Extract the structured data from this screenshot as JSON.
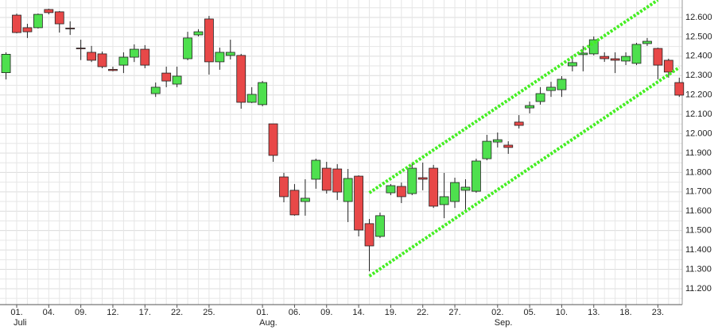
{
  "chart_data": {
    "type": "candlestick",
    "categories": [
      null,
      "01.",
      null,
      null,
      "04.",
      null,
      null,
      "09.",
      null,
      null,
      "12.",
      null,
      null,
      "17.",
      null,
      null,
      "22.",
      null,
      null,
      "25.",
      null,
      null,
      null,
      null,
      "01.",
      null,
      null,
      "06.",
      null,
      null,
      "09.",
      null,
      null,
      "14.",
      null,
      null,
      "19.",
      null,
      null,
      "22.",
      null,
      null,
      "27.",
      null,
      null,
      null,
      "02.",
      null,
      null,
      "05.",
      null,
      null,
      "10.",
      null,
      null,
      "13.",
      null,
      null,
      "18.",
      null,
      null,
      "23.",
      null,
      null
    ],
    "months": [
      null,
      "Juli",
      null,
      null,
      null,
      null,
      null,
      null,
      null,
      null,
      null,
      null,
      null,
      null,
      null,
      null,
      null,
      null,
      null,
      null,
      null,
      null,
      null,
      null,
      "Aug.",
      null,
      null,
      null,
      null,
      null,
      null,
      null,
      null,
      null,
      null,
      null,
      null,
      null,
      null,
      null,
      null,
      null,
      null,
      null,
      null,
      null,
      "Sep.",
      null,
      null,
      null,
      null,
      null,
      null,
      null,
      null,
      null,
      null,
      null,
      null,
      null,
      null,
      null,
      null,
      null
    ],
    "open": [
      12315,
      12612,
      12547,
      12547,
      12641,
      12629,
      12545,
      12442,
      12420,
      12412,
      12332,
      12354,
      12395,
      12436,
      12207,
      12313,
      12256,
      12387,
      12510,
      12592,
      12371,
      12404,
      12404,
      12162,
      12150,
      12051,
      11777,
      11708,
      11650,
      11765,
      11822,
      11818,
      11650,
      11781,
      11536,
      11470,
      11695,
      11728,
      11691,
      11773,
      11822,
      11634,
      11650,
      11708,
      11703,
      11871,
      11957,
      11941,
      12060,
      12133,
      12166,
      12223,
      12227,
      12350,
      12408,
      12412,
      12399,
      12387,
      12375,
      12363,
      12465,
      12440,
      12379,
      12264
    ],
    "high": [
      12420,
      12620,
      12567,
      12620,
      12645,
      12633,
      12580,
      12485,
      12453,
      12424,
      12346,
      12420,
      12461,
      12457,
      12264,
      12346,
      12346,
      12526,
      12539,
      12608,
      12444,
      12485,
      12412,
      12240,
      12272,
      12051,
      11798,
      11740,
      11765,
      11871,
      11855,
      11843,
      11818,
      11785,
      11560,
      11593,
      11740,
      11748,
      11851,
      11851,
      11839,
      11798,
      11773,
      11765,
      11871,
      11994,
      12006,
      11961,
      12096,
      12166,
      12240,
      12268,
      12297,
      12404,
      12453,
      12502,
      12420,
      12420,
      12420,
      12469,
      12494,
      12444,
      12387,
      12289
    ],
    "low": [
      12280,
      12518,
      12494,
      12543,
      12616,
      12522,
      12510,
      12380,
      12370,
      12338,
      12322,
      12313,
      12370,
      12338,
      12190,
      12240,
      12240,
      12379,
      12502,
      12305,
      12330,
      12383,
      12129,
      12158,
      12142,
      11855,
      11646,
      11577,
      11577,
      11716,
      11691,
      11658,
      11544,
      11470,
      11290,
      11462,
      11683,
      11642,
      11683,
      11708,
      11617,
      11564,
      11617,
      11593,
      11695,
      11863,
      11929,
      11896,
      12027,
      12105,
      12150,
      12190,
      12190,
      12322,
      12322,
      12404,
      12371,
      12313,
      12354,
      12354,
      12453,
      12281,
      12289,
      12190
    ],
    "close": [
      12410,
      12522,
      12526,
      12616,
      12625,
      12567,
      12541,
      12438,
      12379,
      12346,
      12326,
      12395,
      12436,
      12354,
      12240,
      12272,
      12297,
      12494,
      12526,
      12371,
      12420,
      12420,
      12162,
      12203,
      12264,
      11888,
      11675,
      11581,
      11667,
      11863,
      11708,
      11699,
      11769,
      11503,
      11421,
      11577,
      11732,
      11675,
      11822,
      11765,
      11626,
      11675,
      11748,
      11724,
      11859,
      11961,
      11969,
      11929,
      12043,
      12145,
      12207,
      12240,
      12281,
      12367,
      12416,
      12485,
      12387,
      12379,
      12399,
      12461,
      12477,
      12354,
      12318,
      12199
    ],
    "up_color": "#4ee04e",
    "down_color": "#e84848",
    "trend_lines": [
      {
        "color": "#44ee22",
        "points": [
          [
            34,
            11695
          ],
          [
            61,
            12690
          ]
        ]
      },
      {
        "color": "#44ee22",
        "points": [
          [
            34,
            11265
          ],
          [
            63,
            12342
          ]
        ]
      }
    ],
    "ylim": [
      11118,
      12690
    ],
    "yticks": [
      {
        "value": 11200,
        "label": "11.200"
      },
      {
        "value": 11300,
        "label": "11.300"
      },
      {
        "value": 11400,
        "label": "11.400"
      },
      {
        "value": 11500,
        "label": "11.500"
      },
      {
        "value": 11600,
        "label": "11.600"
      },
      {
        "value": 11700,
        "label": "11.700"
      },
      {
        "value": 11800,
        "label": "11.800"
      },
      {
        "value": 11900,
        "label": "11.900"
      },
      {
        "value": 12000,
        "label": "12.000"
      },
      {
        "value": 12100,
        "label": "12.100"
      },
      {
        "value": 12200,
        "label": "12.200"
      },
      {
        "value": 12300,
        "label": "12.300"
      },
      {
        "value": 12400,
        "label": "12.400"
      },
      {
        "value": 12500,
        "label": "12.500"
      },
      {
        "value": 12600,
        "label": "12.600"
      }
    ],
    "minor_yticks": [
      11150,
      11250,
      11350,
      11450,
      11550,
      11650,
      11750,
      11850,
      11950,
      12050,
      12150,
      12250,
      12350,
      12450,
      12550,
      12650
    ],
    "grid": true
  }
}
